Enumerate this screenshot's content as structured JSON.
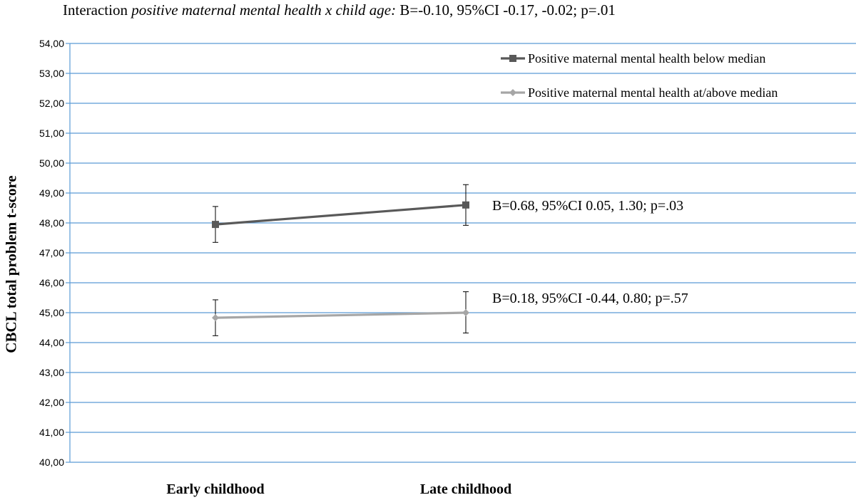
{
  "title": {
    "prefix": "Interaction ",
    "italic": "positive maternal mental health x child age:",
    "suffix": " B=-0.10, 95%CI -0.17, -0.02; p=.01"
  },
  "chart_data": {
    "type": "line",
    "title": "Interaction positive maternal mental health x child age: B=-0.10, 95%CI -0.17, -0.02; p=.01",
    "xlabel": "",
    "ylabel": "CBCL total problem t-score",
    "ylim": [
      40,
      54
    ],
    "ytick_step": 1,
    "ytick_labels": [
      "40,00",
      "41,00",
      "42,00",
      "43,00",
      "44,00",
      "45,00",
      "46,00",
      "47,00",
      "48,00",
      "49,00",
      "50,00",
      "51,00",
      "52,00",
      "53,00",
      "54,00"
    ],
    "categories": [
      "Early childhood",
      "Late childhood"
    ],
    "grid": true,
    "legend_position": "top-right",
    "series": [
      {
        "name": "Positive maternal mental health below median",
        "values": [
          47.95,
          48.6
        ],
        "error_low": [
          47.35,
          47.92
        ],
        "error_high": [
          48.55,
          49.28
        ],
        "color": "#595959",
        "marker": "square",
        "annotation": "B=0.68, 95%CI 0.05, 1.30; p=.03"
      },
      {
        "name": "Positive maternal mental health at/above median",
        "values": [
          44.83,
          45.0
        ],
        "error_low": [
          44.23,
          44.32
        ],
        "error_high": [
          45.43,
          45.7
        ],
        "color": "#a6a6a6",
        "marker": "diamond",
        "annotation": "B=0.18, 95%CI -0.44, 0.80; p=.57"
      }
    ]
  },
  "colors": {
    "gridline": "#5b9bd5",
    "axis": "#000000"
  }
}
